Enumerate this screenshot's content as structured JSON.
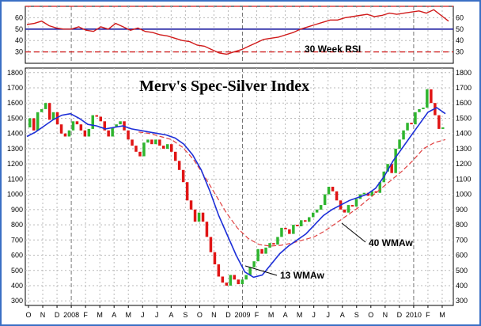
{
  "colors": {
    "border": "#3a6fc4",
    "frame": "#000000",
    "grid": "#b9b9b9",
    "up": "#2fb52f",
    "down": "#e01515",
    "rsi_line": "#d01a1a",
    "rsi_ref": "#1a1aa0",
    "wma13": "#1d2fd8",
    "wma40": "#e04040"
  },
  "chart_data": [
    {
      "type": "line",
      "title": "30 Week RSI",
      "ylim": [
        20,
        70
      ],
      "y_ticks": [
        30,
        40,
        50,
        60
      ],
      "y_tick_labels": [
        "30",
        "40",
        "50",
        "60"
      ],
      "reference_lines": [
        {
          "y": 70,
          "style": "dashed",
          "color": "#d01a1a"
        },
        {
          "y": 50,
          "style": "solid",
          "color": "#1a1aa0"
        },
        {
          "y": 30,
          "style": "dashed",
          "color": "#d01a1a"
        }
      ],
      "series": [
        {
          "values": [
            54,
            55,
            57,
            53,
            51,
            50,
            50,
            52,
            49,
            48,
            52,
            50,
            55,
            52,
            49,
            51,
            48,
            47,
            45,
            44,
            42,
            40,
            39,
            36,
            35,
            32,
            29,
            28,
            30,
            32,
            35,
            38,
            41,
            42,
            43,
            45,
            47,
            50,
            52,
            54,
            56,
            58,
            58,
            60,
            61,
            62,
            63,
            61,
            62,
            64,
            63,
            64,
            65,
            66,
            64,
            67,
            62,
            57
          ]
        }
      ]
    },
    {
      "type": "candlestick",
      "title": "Merv's Spec-Silver Index",
      "ylim": [
        270,
        1830
      ],
      "y_ticks": [
        300,
        400,
        500,
        600,
        700,
        800,
        900,
        1000,
        1100,
        1200,
        1300,
        1400,
        1500,
        1600,
        1700,
        1800
      ],
      "y_tick_labels": [
        "300",
        "400",
        "500",
        "600",
        "700",
        "800",
        "900",
        "1000",
        "1100",
        "1200",
        "1300",
        "1400",
        "1500",
        "1600",
        "1700",
        "1800"
      ],
      "x_tick_labels": [
        "O",
        "N",
        "D",
        "2008",
        "F",
        "M",
        "A",
        "M",
        "J",
        "J",
        "A",
        "S",
        "O",
        "N",
        "D",
        "2009",
        "F",
        "M",
        "A",
        "M",
        "J",
        "J",
        "A",
        "S",
        "O",
        "N",
        "D",
        "2010",
        "F",
        "M"
      ],
      "candles": [
        {
          "o": 1440,
          "c": 1500
        },
        {
          "o": 1500,
          "c": 1420
        },
        {
          "o": 1420,
          "c": 1540
        },
        {
          "o": 1540,
          "c": 1560
        },
        {
          "o": 1560,
          "c": 1600
        },
        {
          "o": 1600,
          "c": 1490
        },
        {
          "o": 1490,
          "c": 1540
        },
        {
          "o": 1540,
          "c": 1460
        },
        {
          "o": 1460,
          "c": 1400
        },
        {
          "o": 1400,
          "c": 1380
        },
        {
          "o": 1380,
          "c": 1420
        },
        {
          "o": 1420,
          "c": 1480
        },
        {
          "o": 1480,
          "c": 1460
        },
        {
          "o": 1460,
          "c": 1420
        },
        {
          "o": 1420,
          "c": 1380
        },
        {
          "o": 1380,
          "c": 1430
        },
        {
          "o": 1430,
          "c": 1520
        },
        {
          "o": 1520,
          "c": 1510
        },
        {
          "o": 1510,
          "c": 1480
        },
        {
          "o": 1480,
          "c": 1420
        },
        {
          "o": 1420,
          "c": 1380
        },
        {
          "o": 1380,
          "c": 1440
        },
        {
          "o": 1440,
          "c": 1460
        },
        {
          "o": 1460,
          "c": 1480
        },
        {
          "o": 1480,
          "c": 1420
        },
        {
          "o": 1420,
          "c": 1360
        },
        {
          "o": 1360,
          "c": 1320
        },
        {
          "o": 1320,
          "c": 1280
        },
        {
          "o": 1280,
          "c": 1250
        },
        {
          "o": 1250,
          "c": 1340
        },
        {
          "o": 1340,
          "c": 1360
        },
        {
          "o": 1360,
          "c": 1330
        },
        {
          "o": 1330,
          "c": 1360
        },
        {
          "o": 1360,
          "c": 1320
        },
        {
          "o": 1320,
          "c": 1300
        },
        {
          "o": 1300,
          "c": 1330
        },
        {
          "o": 1330,
          "c": 1280
        },
        {
          "o": 1280,
          "c": 1220
        },
        {
          "o": 1220,
          "c": 1160
        },
        {
          "o": 1160,
          "c": 1080
        },
        {
          "o": 1080,
          "c": 960
        },
        {
          "o": 960,
          "c": 900
        },
        {
          "o": 900,
          "c": 820
        },
        {
          "o": 820,
          "c": 880
        },
        {
          "o": 880,
          "c": 820
        },
        {
          "o": 820,
          "c": 720
        },
        {
          "o": 720,
          "c": 620
        },
        {
          "o": 620,
          "c": 540
        },
        {
          "o": 540,
          "c": 460
        },
        {
          "o": 460,
          "c": 420
        },
        {
          "o": 420,
          "c": 400
        },
        {
          "o": 400,
          "c": 470
        },
        {
          "o": 470,
          "c": 440
        },
        {
          "o": 440,
          "c": 410
        },
        {
          "o": 410,
          "c": 440
        },
        {
          "o": 440,
          "c": 470
        },
        {
          "o": 470,
          "c": 520
        },
        {
          "o": 520,
          "c": 560
        },
        {
          "o": 560,
          "c": 640
        },
        {
          "o": 640,
          "c": 610
        },
        {
          "o": 610,
          "c": 650
        },
        {
          "o": 650,
          "c": 680
        },
        {
          "o": 680,
          "c": 670
        },
        {
          "o": 670,
          "c": 720
        },
        {
          "o": 720,
          "c": 780
        },
        {
          "o": 780,
          "c": 770
        },
        {
          "o": 770,
          "c": 740
        },
        {
          "o": 740,
          "c": 800
        },
        {
          "o": 800,
          "c": 790
        },
        {
          "o": 790,
          "c": 830
        },
        {
          "o": 830,
          "c": 820
        },
        {
          "o": 820,
          "c": 850
        },
        {
          "o": 850,
          "c": 880
        },
        {
          "o": 880,
          "c": 900
        },
        {
          "o": 900,
          "c": 930
        },
        {
          "o": 930,
          "c": 1000
        },
        {
          "o": 1000,
          "c": 1050
        },
        {
          "o": 1050,
          "c": 1020
        },
        {
          "o": 1020,
          "c": 960
        },
        {
          "o": 960,
          "c": 900
        },
        {
          "o": 900,
          "c": 880
        },
        {
          "o": 880,
          "c": 930
        },
        {
          "o": 930,
          "c": 920
        },
        {
          "o": 920,
          "c": 970
        },
        {
          "o": 970,
          "c": 1000
        },
        {
          "o": 1000,
          "c": 1010
        },
        {
          "o": 1010,
          "c": 990
        },
        {
          "o": 990,
          "c": 1020
        },
        {
          "o": 1020,
          "c": 1010
        },
        {
          "o": 1010,
          "c": 1080
        },
        {
          "o": 1080,
          "c": 1150
        },
        {
          "o": 1150,
          "c": 1200
        },
        {
          "o": 1200,
          "c": 1140
        },
        {
          "o": 1140,
          "c": 1300
        },
        {
          "o": 1300,
          "c": 1360
        },
        {
          "o": 1360,
          "c": 1420
        },
        {
          "o": 1420,
          "c": 1470
        },
        {
          "o": 1470,
          "c": 1460
        },
        {
          "o": 1460,
          "c": 1540
        },
        {
          "o": 1540,
          "c": 1560
        },
        {
          "o": 1560,
          "c": 1570
        },
        {
          "o": 1570,
          "c": 1690
        },
        {
          "o": 1690,
          "c": 1600
        },
        {
          "o": 1600,
          "c": 1520
        },
        {
          "o": 1520,
          "c": 1430
        },
        {
          "o": 1430,
          "c": 1440
        }
      ],
      "series": [
        {
          "name": "13 WMAw",
          "values": [
            1380,
            1410,
            1450,
            1490,
            1520,
            1530,
            1500,
            1460,
            1450,
            1430,
            1440,
            1450,
            1430,
            1420,
            1410,
            1400,
            1390,
            1370,
            1330,
            1260,
            1160,
            1020,
            860,
            730,
            600,
            490,
            455,
            470,
            540,
            610,
            660,
            700,
            740,
            800,
            860,
            900,
            930,
            960,
            980,
            1000,
            1040,
            1120,
            1220,
            1300,
            1380,
            1460,
            1540,
            1570,
            1530
          ]
        },
        {
          "name": "40 WMAw",
          "values": [
            1410,
            1400,
            1380,
            1360,
            1310,
            1230,
            1120,
            1000,
            880,
            780,
            710,
            670,
            660,
            665,
            680,
            700,
            720,
            760,
            810,
            860,
            910,
            970,
            1030,
            1090,
            1150,
            1220,
            1300,
            1340,
            1360
          ]
        }
      ]
    }
  ],
  "labels": {
    "rsi": "30 Week RSI",
    "title": "Merv's Spec-Silver Index",
    "wma40": "40 WMAw",
    "wma13": "13 WMAw"
  }
}
